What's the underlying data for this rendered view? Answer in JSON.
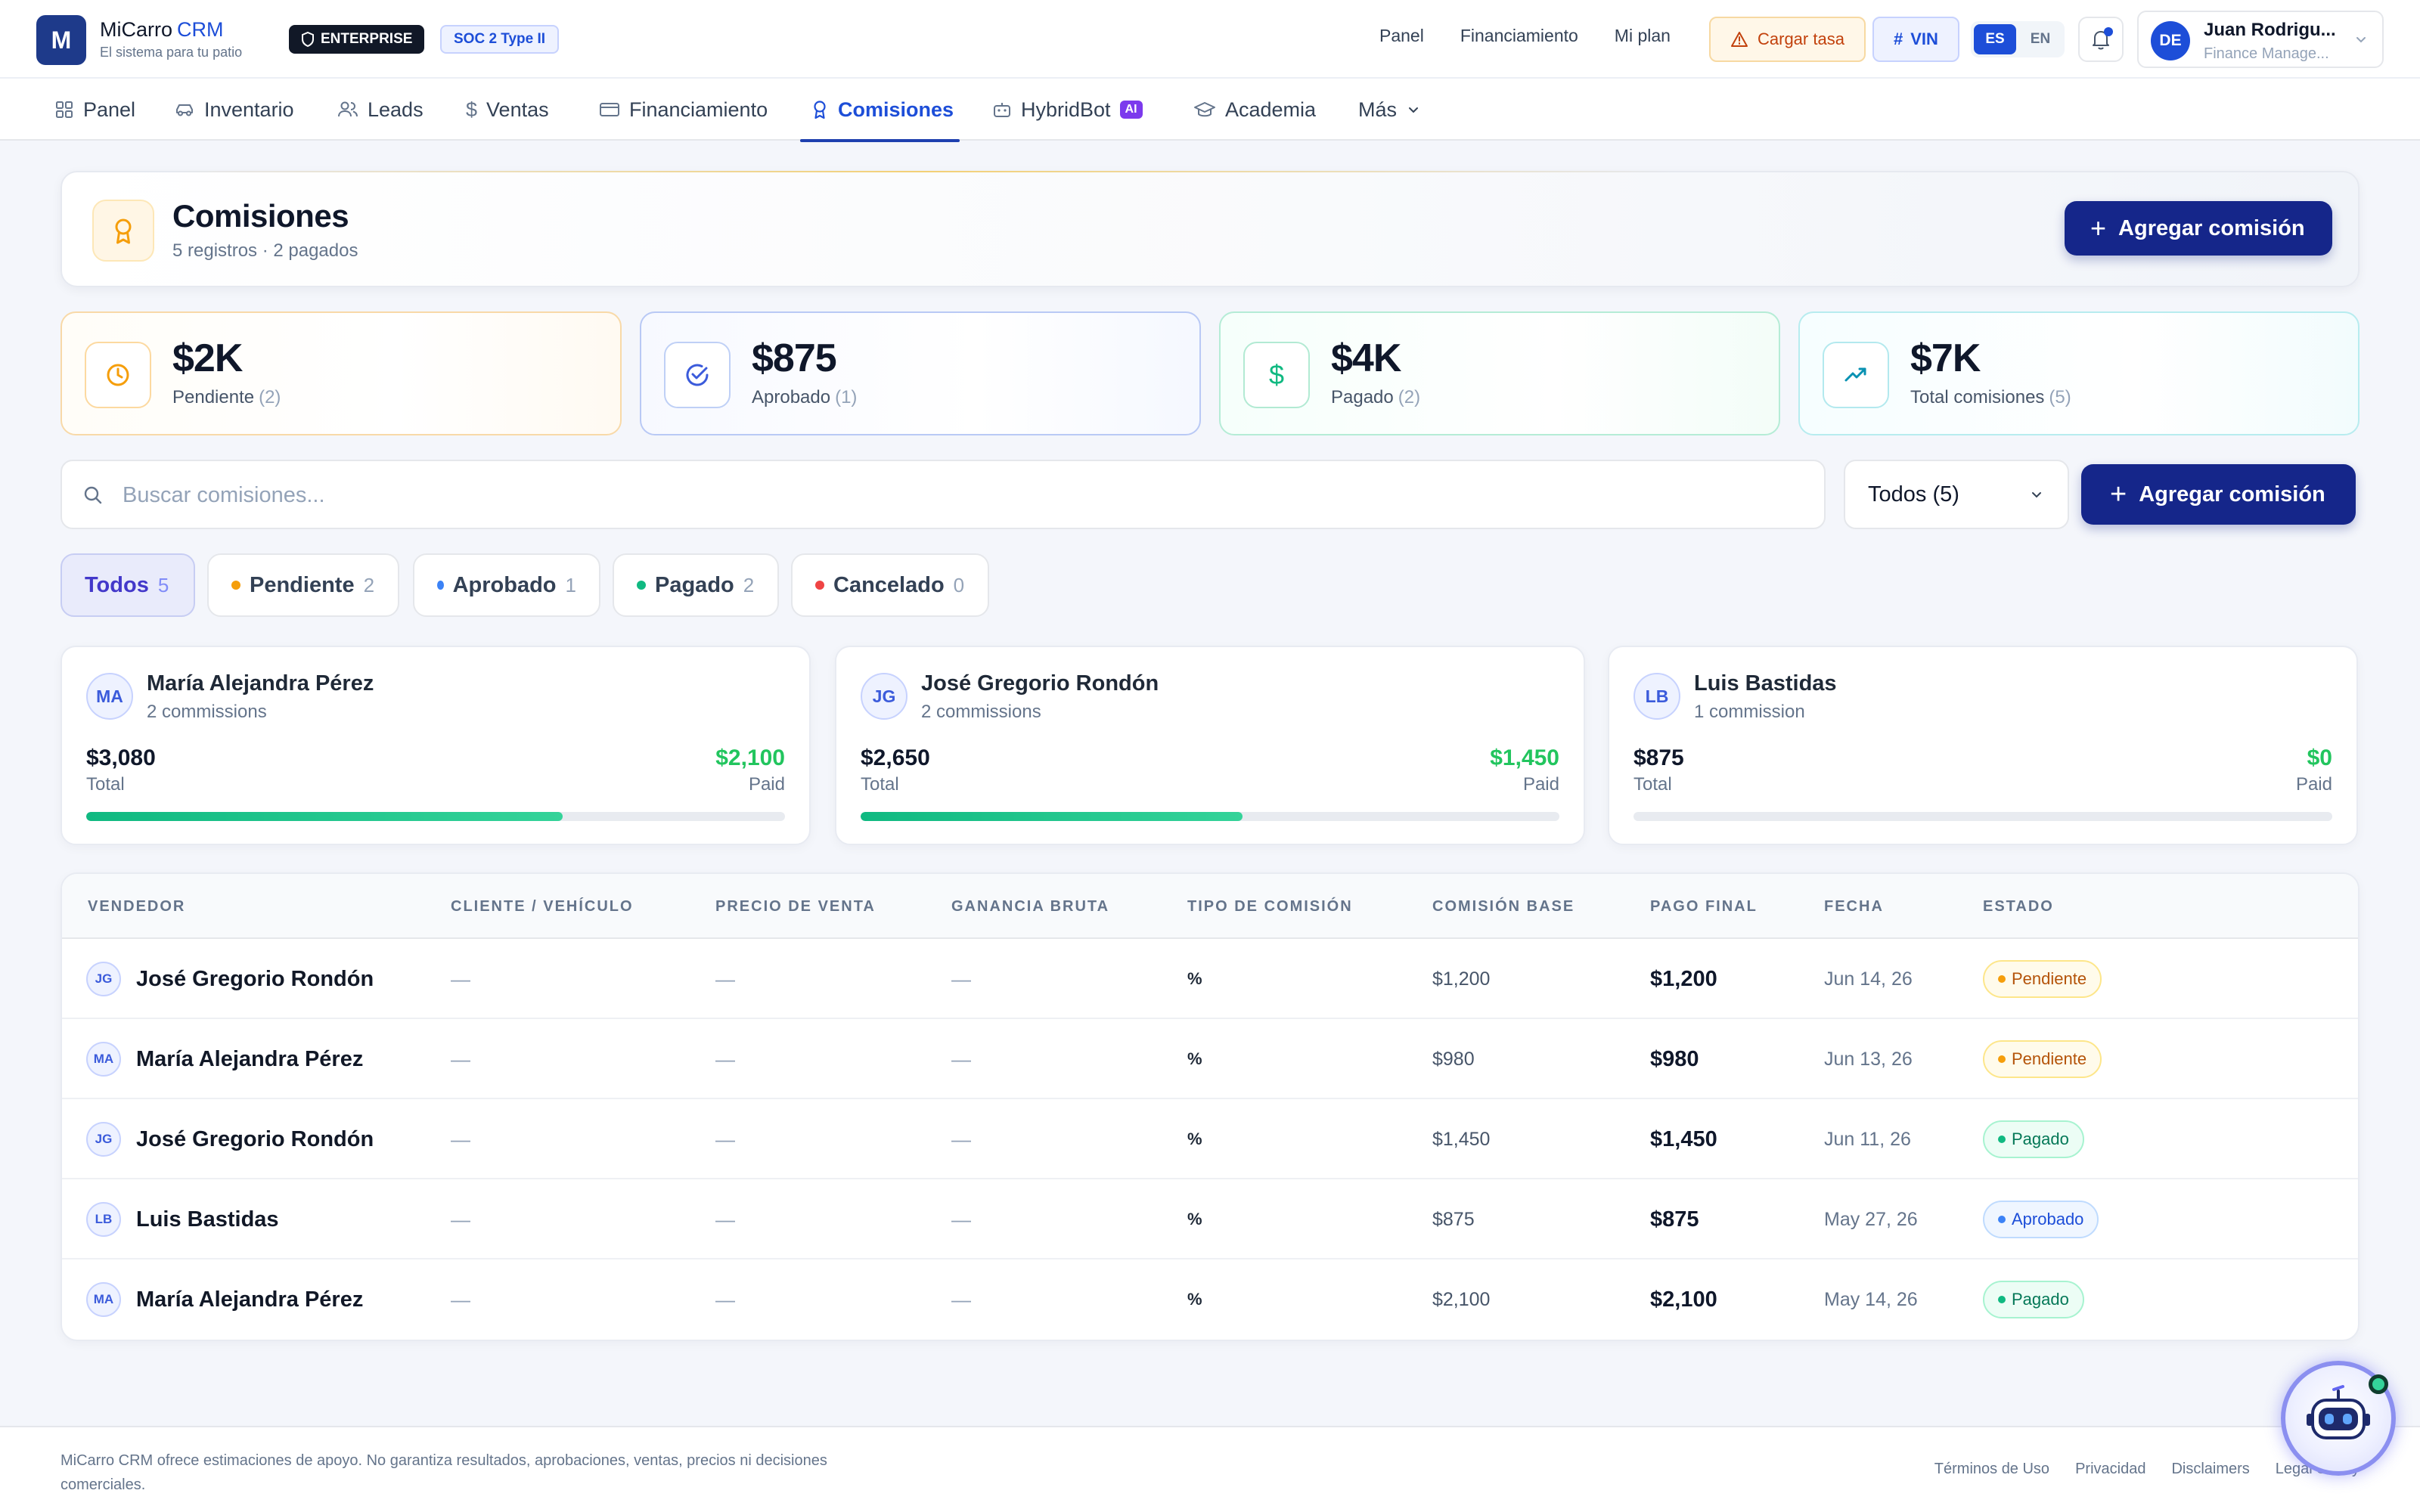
{
  "app": {
    "logo_letter": "M",
    "name": "MiCarro",
    "name_suffix": "CRM",
    "tagline": "El sistema para tu patio",
    "badge_enterprise": "ENTERPRISE",
    "badge_soc": "SOC 2 Type II"
  },
  "topbar": {
    "links": [
      "Panel",
      "Financiamiento",
      "Mi plan"
    ],
    "cargar_tasa": "Cargar tasa",
    "vin": "VIN",
    "lang_es": "ES",
    "lang_en": "EN",
    "user_initials": "DE",
    "user_name": "Juan Rodrigu...",
    "user_role": "Finance Manage..."
  },
  "nav": {
    "items": [
      "Panel",
      "Inventario",
      "Leads",
      "Ventas",
      "Financiamiento",
      "Comisiones",
      "HybridBot",
      "Academia",
      "Más"
    ],
    "ai_badge": "AI",
    "active": "Comisiones"
  },
  "header": {
    "title": "Comisiones",
    "subtitle": "5 registros · 2 pagados",
    "add_label": "Agregar comisión"
  },
  "stats": [
    {
      "value": "$2K",
      "label": "Pendiente",
      "count": "(2)",
      "color": "#f59e0b"
    },
    {
      "value": "$875",
      "label": "Aprobado",
      "count": "(1)",
      "color": "#3b82f6"
    },
    {
      "value": "$4K",
      "label": "Pagado",
      "count": "(2)",
      "color": "#10b981"
    },
    {
      "value": "$7K",
      "label": "Total comisiones",
      "count": "(5)",
      "color": "#06b6d4"
    }
  ],
  "search": {
    "placeholder": "Buscar comisiones...",
    "select_value": "Todos (5)",
    "add_label": "Agregar comisión"
  },
  "filters": [
    {
      "label": "Todos",
      "count": "5"
    },
    {
      "label": "Pendiente",
      "count": "2",
      "dot": "#f59e0b"
    },
    {
      "label": "Aprobado",
      "count": "1",
      "dot": "#3b82f6"
    },
    {
      "label": "Pagado",
      "count": "2",
      "dot": "#10b981"
    },
    {
      "label": "Cancelado",
      "count": "0",
      "dot": "#ef4444"
    }
  ],
  "sellers": [
    {
      "initials": "MA",
      "name": "María Alejandra Pérez",
      "count": "2 commissions",
      "total": "$3,080",
      "total_label": "Total",
      "paid": "$2,100",
      "paid_label": "Paid",
      "paid_ratio": 0.682
    },
    {
      "initials": "JG",
      "name": "José Gregorio Rondón",
      "count": "2 commissions",
      "total": "$2,650",
      "total_label": "Total",
      "paid": "$1,450",
      "paid_label": "Paid",
      "paid_ratio": 0.547
    },
    {
      "initials": "LB",
      "name": "Luis Bastidas",
      "count": "1 commission",
      "total": "$875",
      "total_label": "Total",
      "paid": "$0",
      "paid_label": "Paid",
      "paid_ratio": 0
    }
  ],
  "table": {
    "headers": [
      "VENDEDOR",
      "CLIENTE / VEHÍCULO",
      "PRECIO DE VENTA",
      "GANANCIA BRUTA",
      "TIPO DE COMISIÓN",
      "COMISIÓN BASE",
      "PAGO FINAL",
      "FECHA",
      "ESTADO"
    ],
    "rows": [
      {
        "initials": "JG",
        "vendedor": "José Gregorio Rondón",
        "cliente": "—",
        "precio": "—",
        "ganancia": "—",
        "tipo": "%",
        "base": "$1,200",
        "final": "$1,200",
        "fecha": "Jun 14, 26",
        "estado": "Pendiente"
      },
      {
        "initials": "MA",
        "vendedor": "María Alejandra Pérez",
        "cliente": "—",
        "precio": "—",
        "ganancia": "—",
        "tipo": "%",
        "base": "$980",
        "final": "$980",
        "fecha": "Jun 13, 26",
        "estado": "Pendiente"
      },
      {
        "initials": "JG",
        "vendedor": "José Gregorio Rondón",
        "cliente": "—",
        "precio": "—",
        "ganancia": "—",
        "tipo": "%",
        "base": "$1,450",
        "final": "$1,450",
        "fecha": "Jun 11, 26",
        "estado": "Pagado"
      },
      {
        "initials": "LB",
        "vendedor": "Luis Bastidas",
        "cliente": "—",
        "precio": "—",
        "ganancia": "—",
        "tipo": "%",
        "base": "$875",
        "final": "$875",
        "fecha": "May 27, 26",
        "estado": "Aprobado"
      },
      {
        "initials": "MA",
        "vendedor": "María Alejandra Pérez",
        "cliente": "—",
        "precio": "—",
        "ganancia": "—",
        "tipo": "%",
        "base": "$2,100",
        "final": "$2,100",
        "fecha": "May 14, 26",
        "estado": "Pagado"
      }
    ]
  },
  "footer": {
    "disclaimer": "MiCarro CRM ofrece estimaciones de apoyo. No garantiza resultados, aprobaciones, ventas, precios ni decisiones comerciales.",
    "links": [
      "Términos de Uso",
      "Privacidad",
      "Disclaimers",
      "Legal Safety"
    ]
  }
}
